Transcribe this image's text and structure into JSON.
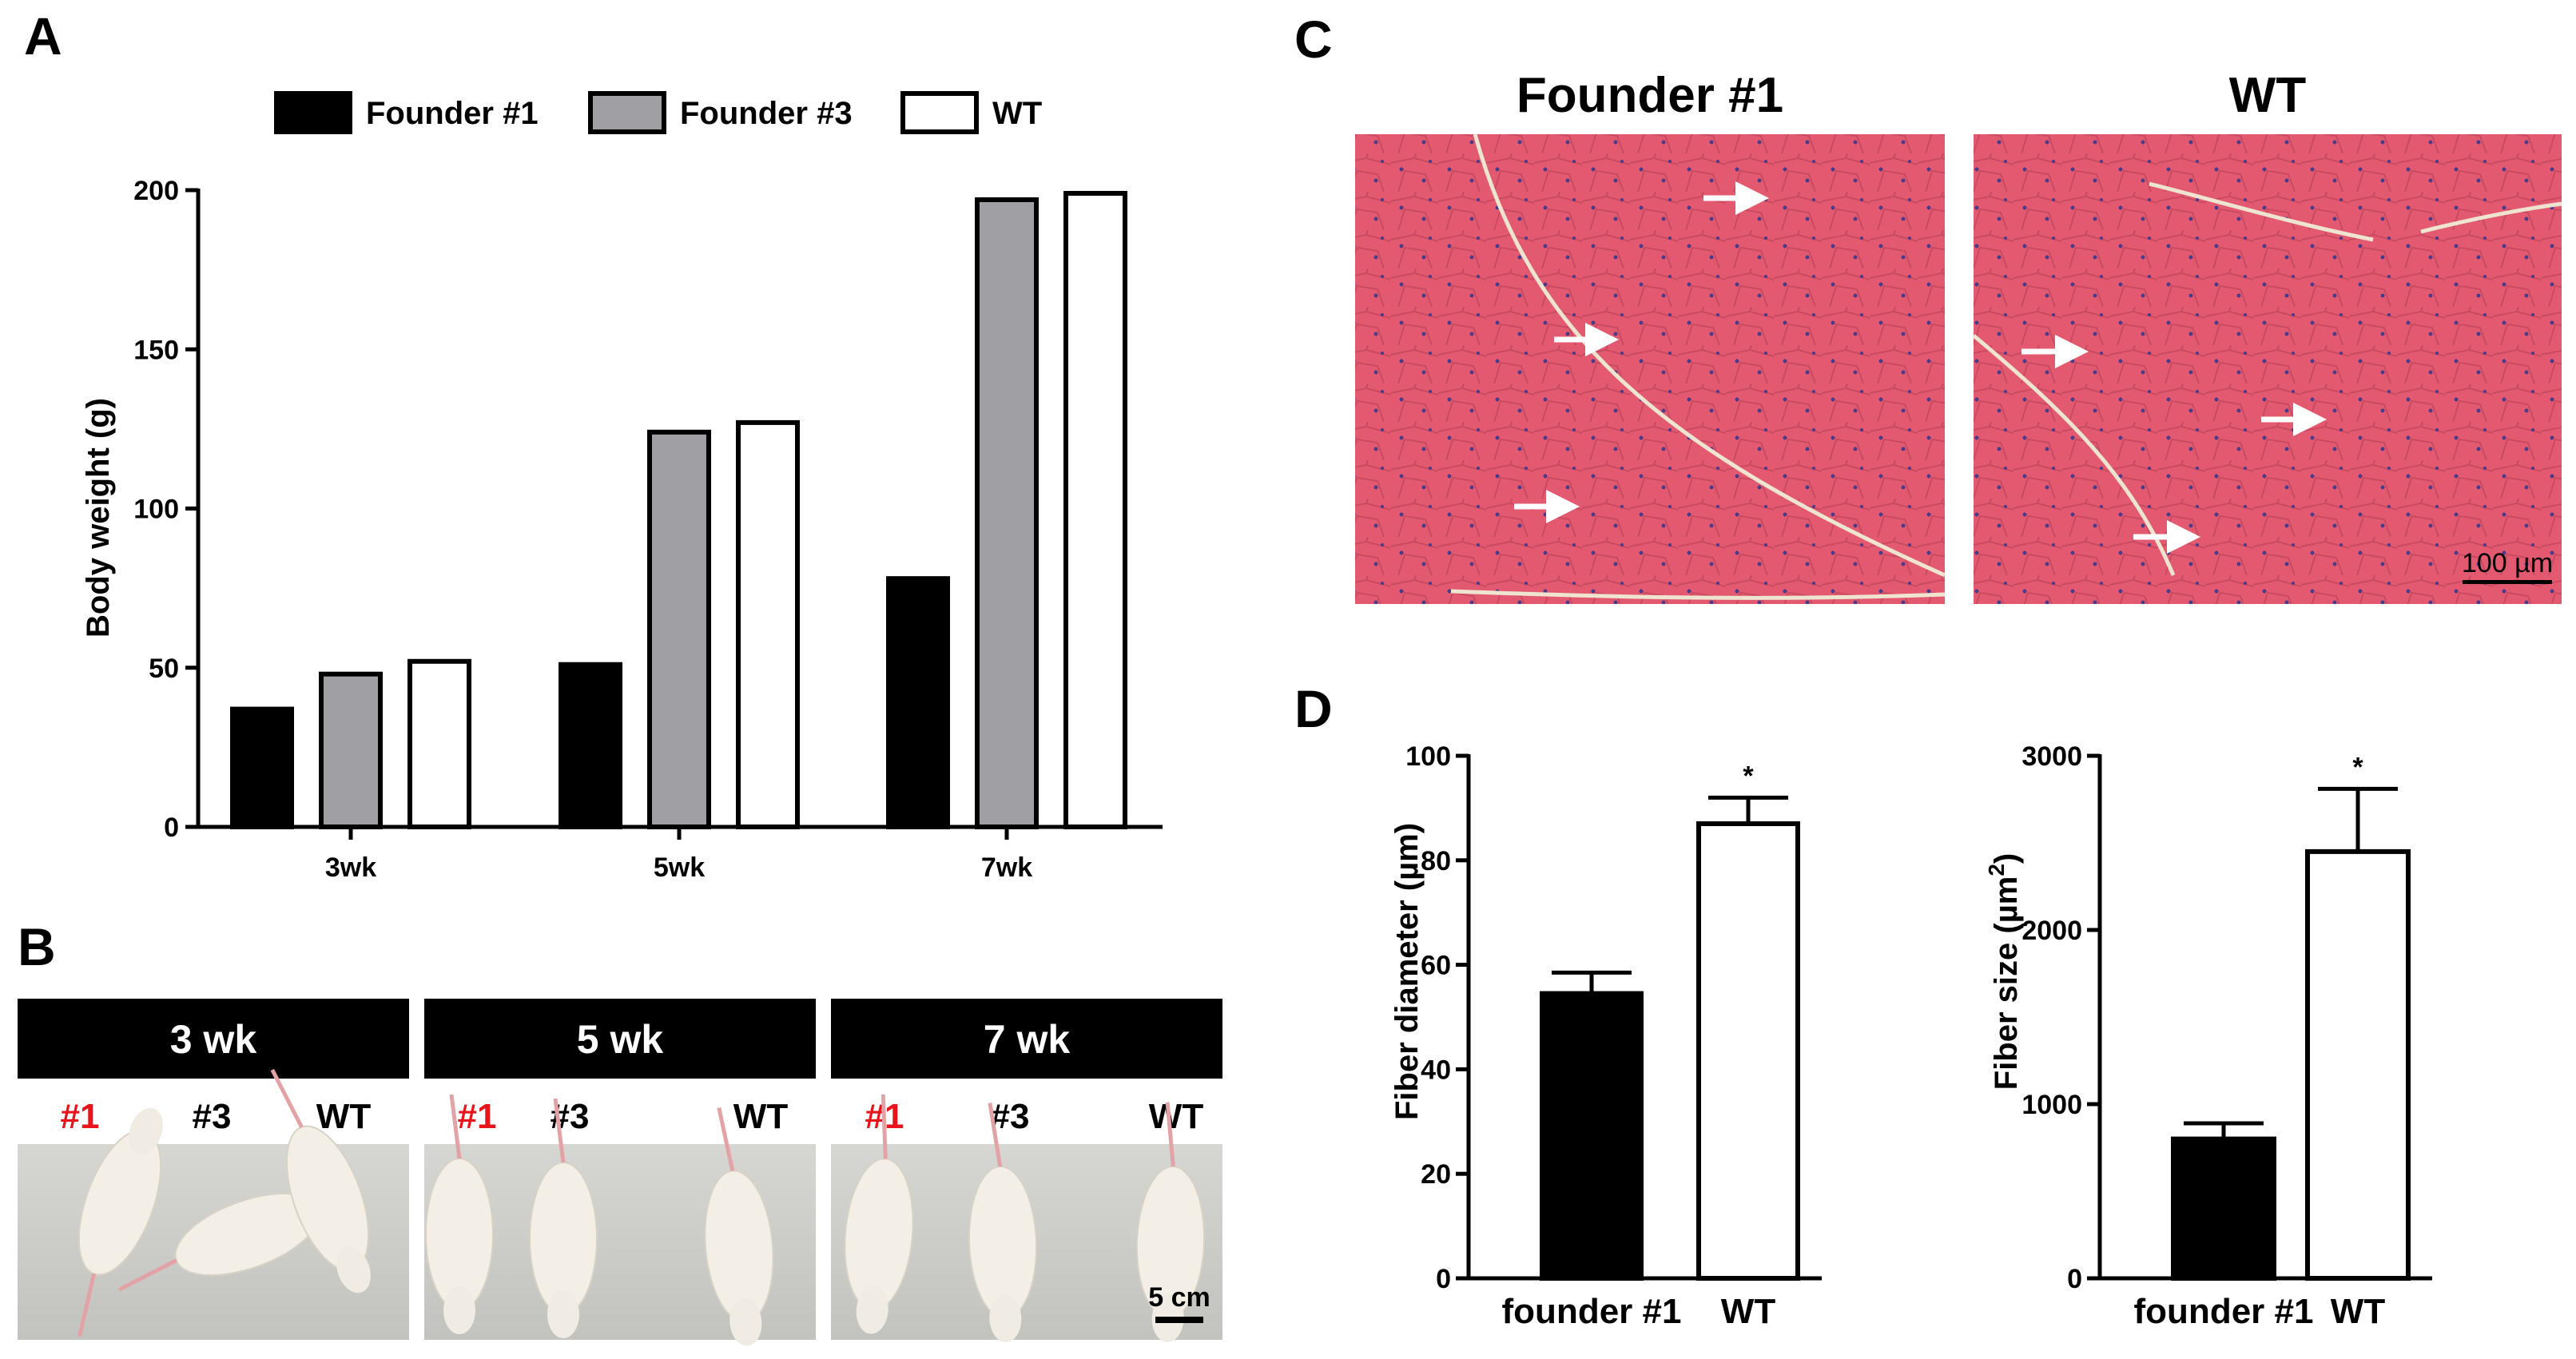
{
  "panels": {
    "A": "A",
    "B": "B",
    "C": "C",
    "D": "D"
  },
  "chart_data": [
    {
      "type": "bar",
      "panel": "A",
      "categories": [
        "3wk",
        "5wk",
        "7wk"
      ],
      "series": [
        {
          "name": "Founder #1",
          "values": [
            37,
            51,
            78
          ],
          "color": "#000000"
        },
        {
          "name": "Founder #3",
          "values": [
            48,
            124,
            197
          ],
          "color": "#a0a0a4"
        },
        {
          "name": "WT",
          "values": [
            52,
            127,
            199
          ],
          "color": "#ffffff"
        }
      ],
      "ylabel": "Body weight (g)",
      "ylim": [
        0,
        200
      ],
      "yticks": [
        "0",
        "50",
        "100",
        "150",
        "200"
      ],
      "legend": "top"
    },
    {
      "type": "bar",
      "panel": "D",
      "categories": [
        "founder #1",
        "WT"
      ],
      "values": [
        54.5,
        87
      ],
      "errors": [
        4,
        5
      ],
      "significance": [
        "",
        "*"
      ],
      "colors": [
        "#000000",
        "#ffffff"
      ],
      "ylabel": "Fiber diameter (µm)",
      "ylim": [
        0,
        100
      ],
      "yticks": [
        "0",
        "20",
        "40",
        "60",
        "80",
        "100"
      ]
    },
    {
      "type": "bar",
      "panel": "D",
      "categories": [
        "founder #1",
        "WT"
      ],
      "values": [
        800,
        2450
      ],
      "errors": [
        90,
        360
      ],
      "significance": [
        "",
        "*"
      ],
      "colors": [
        "#000000",
        "#ffffff"
      ],
      "ylabel_main": "Fiber size (µm",
      "ylabel_sup": "2",
      "ylabel_close": ")",
      "ylim": [
        0,
        3000
      ],
      "yticks": [
        "0",
        "1000",
        "2000",
        "3000"
      ]
    }
  ],
  "photos": {
    "headers": [
      "3 wk",
      "5 wk",
      "7 wk"
    ],
    "labels": [
      [
        "#1",
        "#3",
        "WT"
      ],
      [
        "#1",
        "#3",
        "WT"
      ],
      [
        "#1",
        "#3",
        "WT"
      ]
    ],
    "highlight_color": "#e8141b",
    "scale_bar": "5 cm"
  },
  "histology": {
    "titles": [
      "Founder #1",
      "WT"
    ],
    "scale_bar": "100 µm",
    "tissue_color": "#e45a70"
  }
}
